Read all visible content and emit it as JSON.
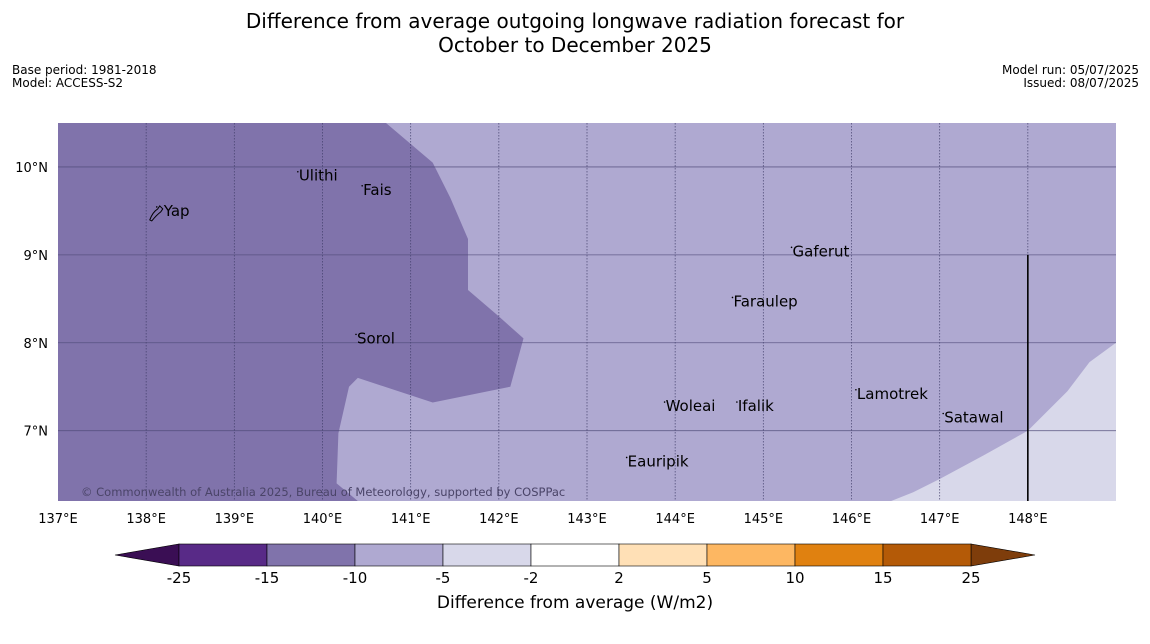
{
  "title_line1": "Difference from average outgoing longwave radiation forecast for",
  "title_line2": "October to December 2025",
  "meta_left": {
    "base_period": "Base period: 1981-2018",
    "model": "Model: ACCESS-S2"
  },
  "meta_right": {
    "model_run": "Model run: 05/07/2025",
    "issued": "Issued: 08/07/2025"
  },
  "copyright": "© Commonwealth of Australia 2025, Bureau of Meteorology, supported by COSPPac",
  "map": {
    "lon_range": [
      137,
      149
    ],
    "lat_range": [
      6.2,
      10.5
    ],
    "lon_ticks": [
      {
        "value": 137,
        "label": "137°E"
      },
      {
        "value": 138,
        "label": "138°E"
      },
      {
        "value": 139,
        "label": "139°E"
      },
      {
        "value": 140,
        "label": "140°E"
      },
      {
        "value": 141,
        "label": "141°E"
      },
      {
        "value": 142,
        "label": "142°E"
      },
      {
        "value": 143,
        "label": "143°E"
      },
      {
        "value": 144,
        "label": "144°E"
      },
      {
        "value": 145,
        "label": "145°E"
      },
      {
        "value": 146,
        "label": "146°E"
      },
      {
        "value": 147,
        "label": "147°E"
      },
      {
        "value": 148,
        "label": "148°E"
      }
    ],
    "lat_ticks": [
      {
        "value": 10,
        "label": "10°N"
      },
      {
        "value": 9,
        "label": "9°N"
      },
      {
        "value": 8,
        "label": "8°N"
      },
      {
        "value": 7,
        "label": "7°N"
      }
    ],
    "places": [
      {
        "name": "Yap",
        "lon": 138.12,
        "lat": 9.5
      },
      {
        "name": "Ulithi",
        "lon": 139.72,
        "lat": 9.9
      },
      {
        "name": "Fais",
        "lon": 140.45,
        "lat": 9.74
      },
      {
        "name": "Sorol",
        "lon": 140.38,
        "lat": 8.05
      },
      {
        "name": "Gaferut",
        "lon": 145.32,
        "lat": 9.04
      },
      {
        "name": "Faraulep",
        "lon": 144.65,
        "lat": 8.47
      },
      {
        "name": "Woleai",
        "lon": 143.88,
        "lat": 7.28
      },
      {
        "name": "Ifalik",
        "lon": 144.7,
        "lat": 7.28
      },
      {
        "name": "Lamotrek",
        "lon": 146.05,
        "lat": 7.42
      },
      {
        "name": "Satawal",
        "lon": 147.04,
        "lat": 7.15
      },
      {
        "name": "Eauripik",
        "lon": 143.45,
        "lat": 6.65
      }
    ],
    "regions": [
      {
        "category": "-15 to -10",
        "color": "#8073ab",
        "polygon": [
          [
            137,
            10.5
          ],
          [
            140.72,
            10.5
          ],
          [
            141.25,
            10.05
          ],
          [
            141.45,
            9.65
          ],
          [
            141.65,
            9.18
          ],
          [
            141.65,
            8.6
          ],
          [
            142.0,
            8.3
          ],
          [
            142.28,
            8.05
          ],
          [
            142.13,
            7.5
          ],
          [
            141.25,
            7.32
          ],
          [
            140.4,
            7.6
          ],
          [
            140.3,
            7.5
          ],
          [
            140.18,
            6.97
          ],
          [
            140.16,
            6.4
          ],
          [
            140.4,
            6.2
          ],
          [
            137,
            6.2
          ]
        ]
      },
      {
        "category": "-5 to -2",
        "color": "#d8d8ea",
        "polygon": [
          [
            149,
            8.0
          ],
          [
            148.7,
            7.78
          ],
          [
            148.45,
            7.45
          ],
          [
            148.0,
            7.0
          ],
          [
            147.5,
            6.72
          ],
          [
            147.0,
            6.45
          ],
          [
            146.7,
            6.3
          ],
          [
            146.45,
            6.2
          ],
          [
            149,
            6.2
          ]
        ]
      }
    ],
    "background_color": "#afa9d1",
    "vertical_line_lon": 148,
    "vertical_line_lat_range": [
      6.2,
      9.0
    ]
  },
  "colorbar": {
    "label": "Difference from average (W/m2)",
    "tick_labels": [
      "-25",
      "-15",
      "-10",
      "-5",
      "-2",
      "2",
      "5",
      "10",
      "15",
      "25"
    ],
    "colors": [
      "#582a87",
      "#8073ab",
      "#afa9d1",
      "#d8d8ea",
      "#ffffff",
      "#ffe0b6",
      "#fdb762",
      "#e08110",
      "#b45a07"
    ],
    "extend_low_color": "#3a0e54",
    "extend_high_color": "#7e3d0b"
  }
}
